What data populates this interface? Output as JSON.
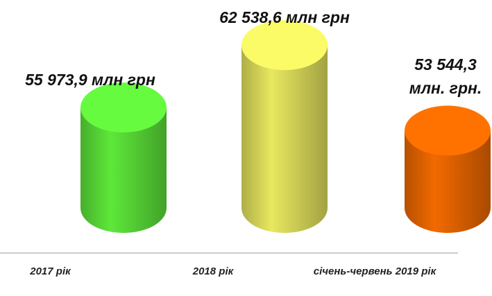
{
  "chart_data": {
    "type": "cylinder-bar",
    "categories": [
      "2017 рік",
      "2018 рік",
      "січень-червень 2019 рік"
    ],
    "values": [
      55973.9,
      62538.6,
      53544.3
    ],
    "value_labels": [
      "55 973,9  млн грн",
      "62 538,6  млн грн",
      "53 544,3 млн. грн."
    ],
    "colors": [
      "#5ee83a",
      "#e8e860",
      "#f26a00"
    ],
    "ylim": [
      45400,
      63500
    ]
  }
}
